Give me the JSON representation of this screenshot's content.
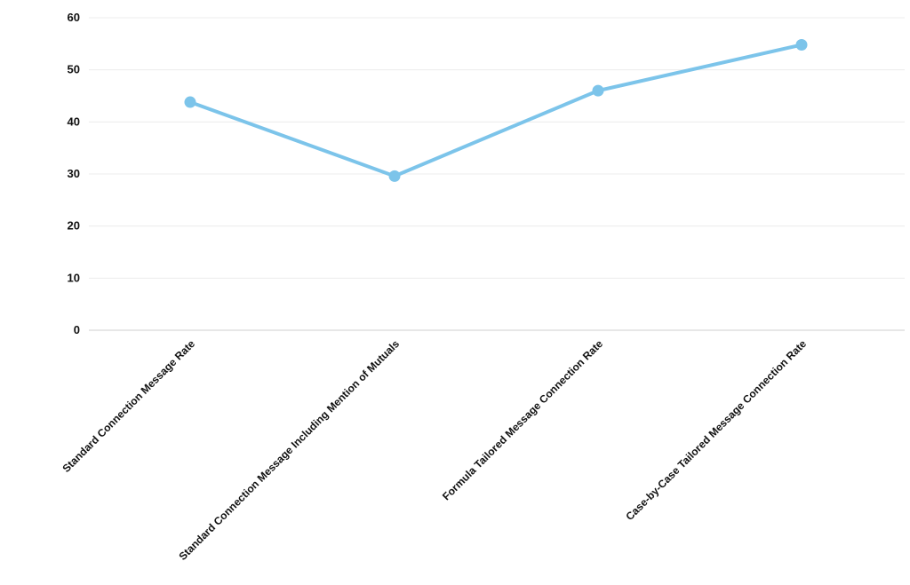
{
  "chart_data": {
    "type": "line",
    "title": "",
    "xlabel": "",
    "ylabel": "",
    "categories": [
      "Standard Connection Message Rate",
      "Standard Connection Message Including Mention of Mutuals",
      "Formula Tailored Message Connection Rate",
      "Case-by-Case Tailored Message Connection Rate"
    ],
    "series": [
      {
        "values": [
          43.8,
          29.6,
          46.0,
          54.8
        ]
      }
    ],
    "ylim": [
      0,
      60
    ],
    "yticks": [
      "0",
      "10",
      "20",
      "30",
      "40",
      "50",
      "60"
    ],
    "grid": true,
    "legend": "none",
    "colors": {
      "line": "#7cc4ea",
      "grid": "#ececec",
      "text": "#111111"
    }
  }
}
